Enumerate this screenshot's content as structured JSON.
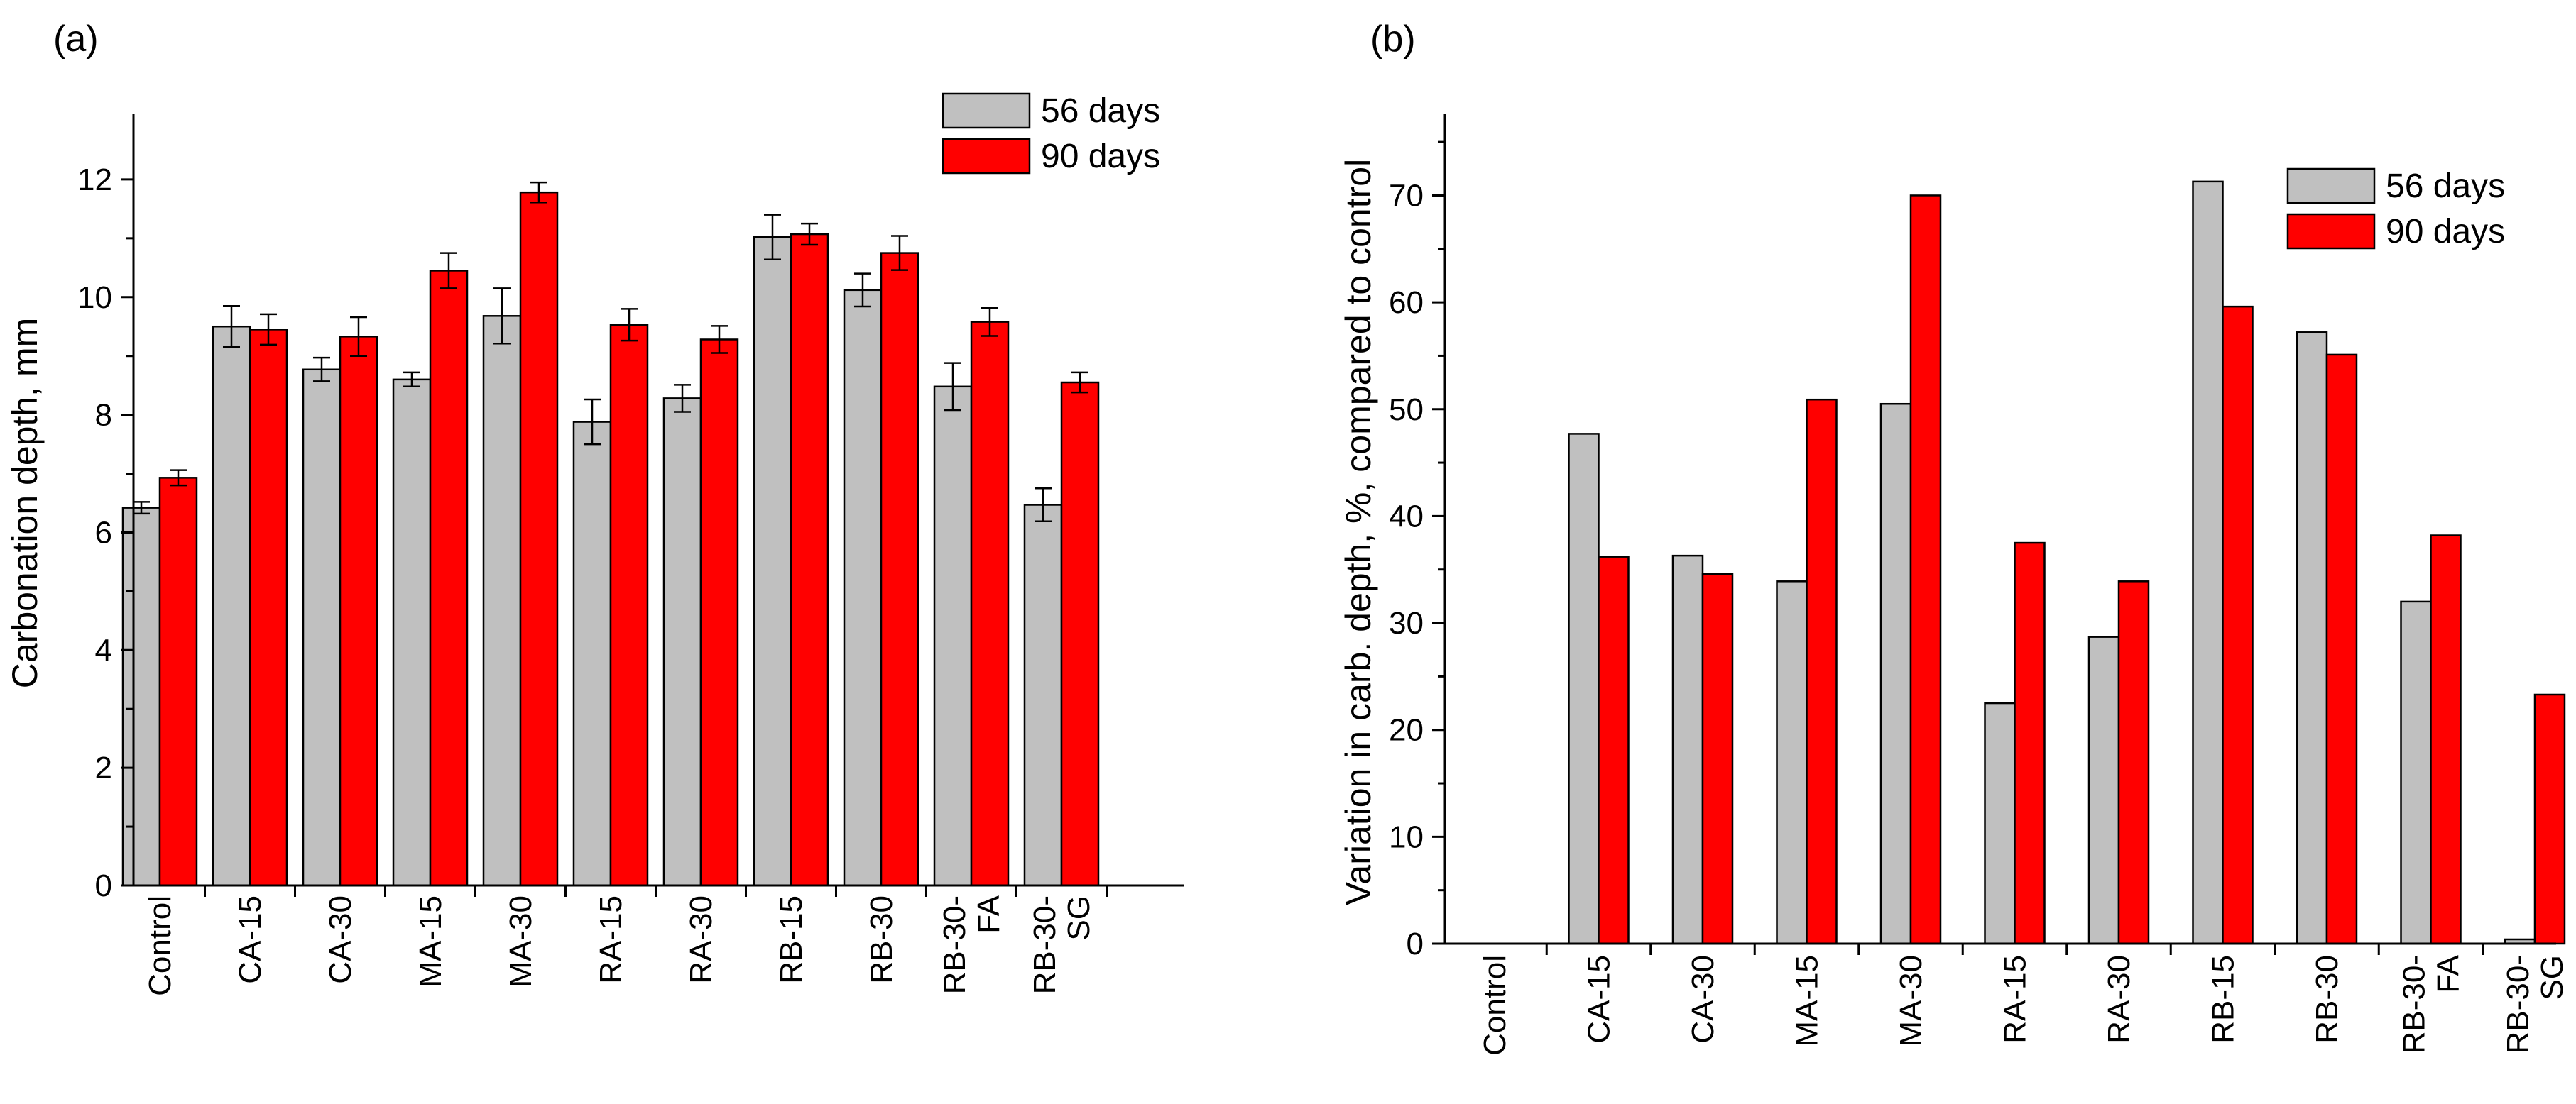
{
  "colors": {
    "days56": "#c0c0c0",
    "days90": "#ff0000",
    "axis": "#000000"
  },
  "chart_data": [
    {
      "type": "bar",
      "panel_label": "(a)",
      "ylabel": "Carbonation depth, mm",
      "xlabel": "",
      "ylim": [
        0,
        13
      ],
      "yticks": [
        0,
        2,
        4,
        6,
        8,
        10,
        12
      ],
      "categories": [
        "Control",
        "CA-15",
        "CA-30",
        "MA-15",
        "MA-30",
        "RA-15",
        "RA-30",
        "RB-15",
        "RB-30",
        "RB-30-FA",
        "RB-30-SG"
      ],
      "category_labels": [
        [
          "Control"
        ],
        [
          "CA-15"
        ],
        [
          "CA-30"
        ],
        [
          "MA-15"
        ],
        [
          "MA-30"
        ],
        [
          "RA-15"
        ],
        [
          "RA-30"
        ],
        [
          "RB-15"
        ],
        [
          "RB-30"
        ],
        [
          "RB-30-",
          "FA"
        ],
        [
          "RB-30-",
          "SG"
        ]
      ],
      "series": [
        {
          "name": "56 days",
          "values": [
            6.42,
            9.5,
            8.77,
            8.6,
            9.68,
            7.88,
            8.28,
            11.02,
            10.12,
            8.48,
            6.47
          ],
          "errors": [
            0.1,
            0.35,
            0.2,
            0.12,
            0.47,
            0.38,
            0.23,
            0.38,
            0.28,
            0.4,
            0.28
          ]
        },
        {
          "name": "90 days",
          "values": [
            6.93,
            9.45,
            9.33,
            10.45,
            11.78,
            9.53,
            9.28,
            11.07,
            10.75,
            9.58,
            8.55
          ],
          "errors": [
            0.13,
            0.26,
            0.33,
            0.3,
            0.17,
            0.27,
            0.23,
            0.18,
            0.29,
            0.24,
            0.17
          ]
        }
      ],
      "legend": "top-right"
    },
    {
      "type": "bar",
      "panel_label": "(b)",
      "ylabel": "Variation in carb. depth, %, compared to control",
      "xlabel": "",
      "ylim": [
        0,
        77
      ],
      "yticks": [
        0,
        10,
        20,
        30,
        40,
        50,
        60,
        70
      ],
      "categories": [
        "Control",
        "CA-15",
        "CA-30",
        "MA-15",
        "MA-30",
        "RA-15",
        "RA-30",
        "RB-15",
        "RB-30",
        "RB-30-FA",
        "RB-30-SG"
      ],
      "category_labels": [
        [
          "Control"
        ],
        [
          "CA-15"
        ],
        [
          "CA-30"
        ],
        [
          "MA-15"
        ],
        [
          "MA-30"
        ],
        [
          "RA-15"
        ],
        [
          "RA-30"
        ],
        [
          "RB-15"
        ],
        [
          "RB-30"
        ],
        [
          "RB-30-",
          "FA"
        ],
        [
          "RB-30-",
          "SG"
        ]
      ],
      "series": [
        {
          "name": "56 days",
          "values": [
            0,
            47.7,
            36.3,
            33.9,
            50.5,
            22.5,
            28.7,
            71.3,
            57.2,
            32.0,
            0.4
          ]
        },
        {
          "name": "90 days",
          "values": [
            0,
            36.2,
            34.6,
            50.9,
            70.0,
            37.5,
            33.9,
            59.6,
            55.1,
            38.2,
            23.3
          ]
        }
      ],
      "legend": "top-right"
    }
  ]
}
